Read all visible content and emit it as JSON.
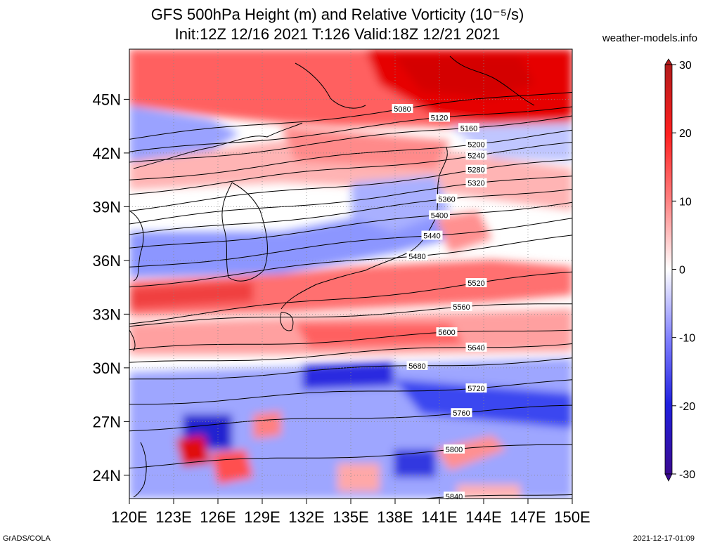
{
  "header": {
    "title_line1": "GFS 500hPa Height (m) and Relative Vorticity (10⁻⁵/s)",
    "title_line2": "Init:12Z 12/16 2021 T:126 Valid:18Z 12/21 2021",
    "site": "weather-models.info"
  },
  "map": {
    "lat_labels": [
      "45N",
      "42N",
      "39N",
      "36N",
      "33N",
      "30N",
      "27N",
      "24N"
    ],
    "lon_labels": [
      "120E",
      "123E",
      "126E",
      "129E",
      "132E",
      "135E",
      "138E",
      "141E",
      "144E",
      "147E",
      "150E"
    ],
    "contours": [
      {
        "label": "5080",
        "lat": 45.0
      },
      {
        "label": "5120",
        "lat": 44.2
      },
      {
        "label": "5160",
        "lat": 43.6
      },
      {
        "label": "5200",
        "lat": 42.7
      },
      {
        "label": "5240",
        "lat": 42.0
      },
      {
        "label": "5280",
        "lat": 41.1
      },
      {
        "label": "5320",
        "lat": 40.3
      },
      {
        "label": "5360",
        "lat": 39.6
      },
      {
        "label": "5400",
        "lat": 38.8
      },
      {
        "label": "5440",
        "lat": 37.8
      },
      {
        "label": "5480",
        "lat": 36.8
      },
      {
        "label": "5520",
        "lat": 34.8
      },
      {
        "label": "5560",
        "lat": 33.4
      },
      {
        "label": "5600",
        "lat": 32.0
      },
      {
        "label": "5640",
        "lat": 31.2
      },
      {
        "label": "5680",
        "lat": 30.3
      },
      {
        "label": "5720",
        "lat": 29.0
      },
      {
        "label": "5760",
        "lat": 27.6
      },
      {
        "label": "5800",
        "lat": 25.5
      },
      {
        "label": "5840",
        "lat": 22.8
      }
    ],
    "colors": {
      "strong_pos": "#e60000",
      "pos": "#ff6b6b",
      "weak_pos": "#ffc8c8",
      "neutral": "#ffffff",
      "weak_neg": "#c8ccff",
      "neg": "#6670ff",
      "strong_neg": "#1a1ad0"
    }
  },
  "colorbar": {
    "ticks": [
      "30",
      "20",
      "10",
      "0",
      "-10",
      "-20",
      "-30"
    ]
  },
  "footer": {
    "left": "GrADS/COLA",
    "right": "2021-12-17-01:09"
  }
}
